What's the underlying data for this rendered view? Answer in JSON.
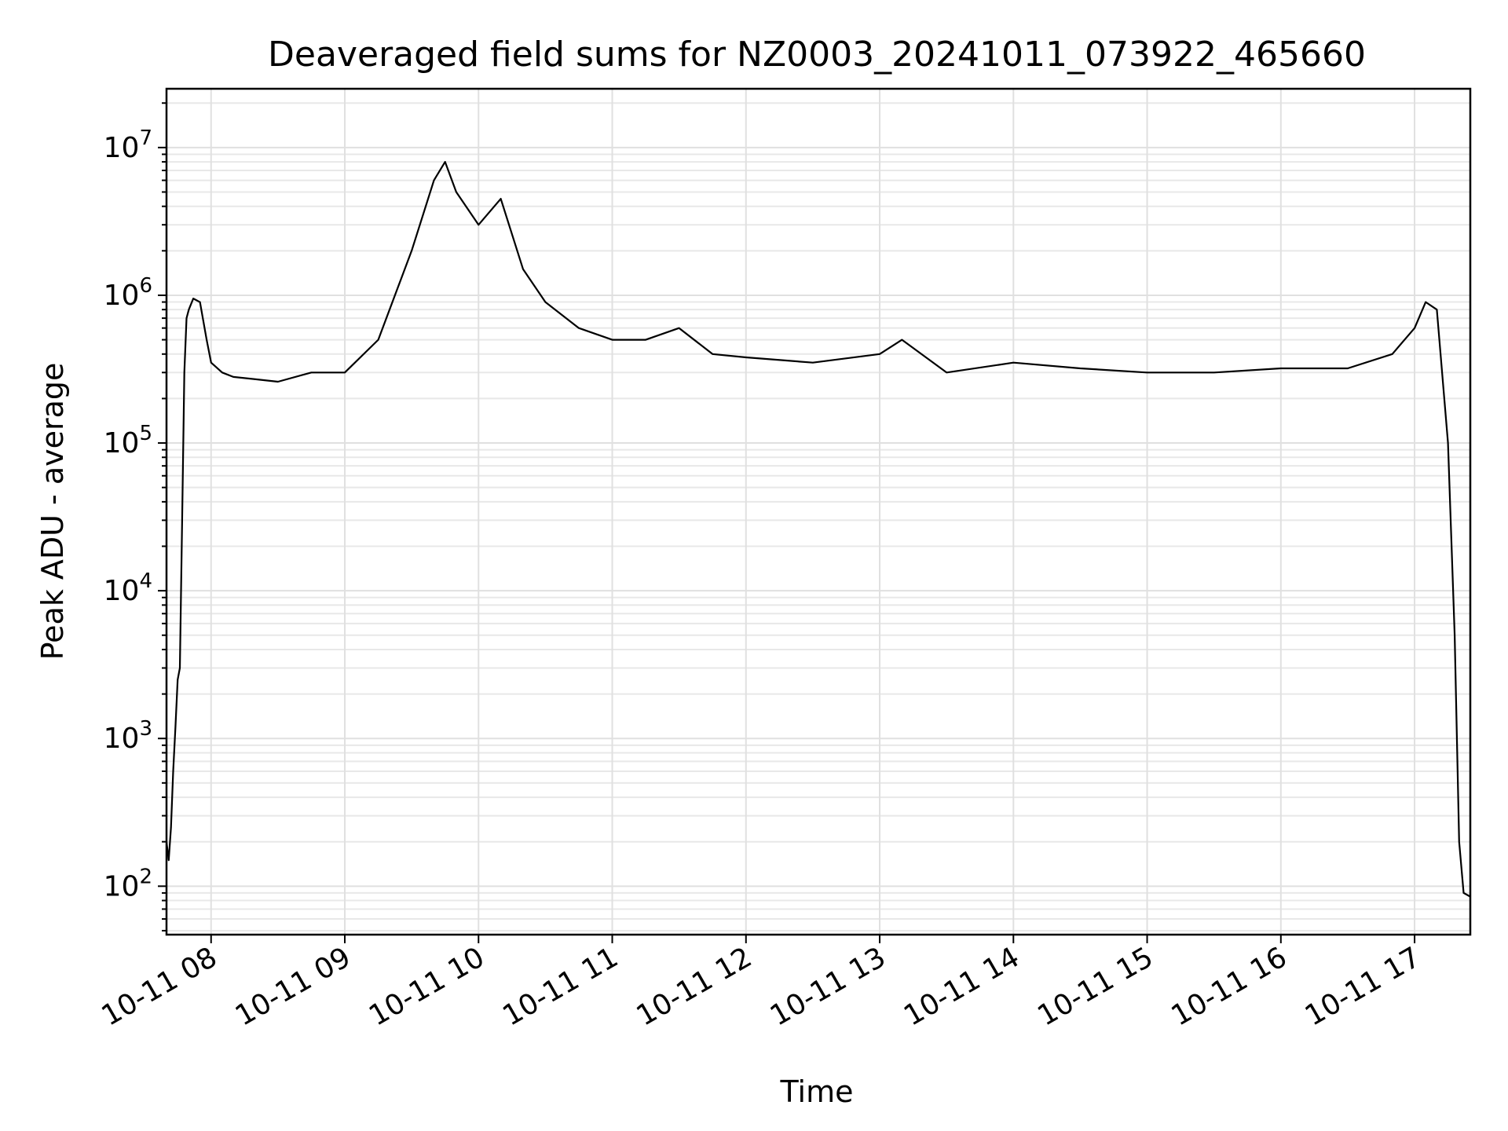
{
  "chart_data": {
    "type": "line",
    "title": "Deaveraged field sums for NZ0003_20241011_073922_465660",
    "xlabel": "Time",
    "ylabel": "Peak ADU - average",
    "yscale": "log",
    "ylim": [
      47,
      25000000
    ],
    "xlim": [
      "2024-10-11 07:40",
      "2024-10-11 17:25"
    ],
    "grid": "on (major and minor)",
    "line_color": "#000000",
    "x_tick_labels": [
      "10-11 08",
      "10-11 09",
      "10-11 10",
      "10-11 11",
      "10-11 12",
      "10-11 13",
      "10-11 14",
      "10-11 15",
      "10-11 16",
      "10-11 17"
    ],
    "y_tick_labels": [
      {
        "base": "10",
        "exp": "2",
        "value": 100
      },
      {
        "base": "10",
        "exp": "3",
        "value": 1000
      },
      {
        "base": "10",
        "exp": "4",
        "value": 10000
      },
      {
        "base": "10",
        "exp": "5",
        "value": 100000
      },
      {
        "base": "10",
        "exp": "6",
        "value": 1000000
      },
      {
        "base": "10",
        "exp": "7",
        "value": 10000000
      }
    ],
    "series": [
      {
        "x": [
          "2024-10-11 07:40",
          "2024-10-11 07:41",
          "2024-10-11 07:42",
          "2024-10-11 07:43",
          "2024-10-11 07:44",
          "2024-10-11 07:45",
          "2024-10-11 07:46",
          "2024-10-11 07:47",
          "2024-10-11 07:48",
          "2024-10-11 07:49",
          "2024-10-11 07:50",
          "2024-10-11 07:52",
          "2024-10-11 07:55",
          "2024-10-11 07:58",
          "2024-10-11 08:00",
          "2024-10-11 08:05",
          "2024-10-11 08:10",
          "2024-10-11 08:20",
          "2024-10-11 08:30",
          "2024-10-11 08:45",
          "2024-10-11 09:00",
          "2024-10-11 09:15",
          "2024-10-11 09:30",
          "2024-10-11 09:40",
          "2024-10-11 09:45",
          "2024-10-11 09:50",
          "2024-10-11 10:00",
          "2024-10-11 10:10",
          "2024-10-11 10:20",
          "2024-10-11 10:30",
          "2024-10-11 10:45",
          "2024-10-11 11:00",
          "2024-10-11 11:15",
          "2024-10-11 11:30",
          "2024-10-11 11:45",
          "2024-10-11 12:00",
          "2024-10-11 12:30",
          "2024-10-11 13:00",
          "2024-10-11 13:10",
          "2024-10-11 13:30",
          "2024-10-11 14:00",
          "2024-10-11 14:30",
          "2024-10-11 15:00",
          "2024-10-11 15:30",
          "2024-10-11 16:00",
          "2024-10-11 16:30",
          "2024-10-11 16:50",
          "2024-10-11 17:00",
          "2024-10-11 17:05",
          "2024-10-11 17:10",
          "2024-10-11 17:15",
          "2024-10-11 17:18",
          "2024-10-11 17:20",
          "2024-10-11 17:22",
          "2024-10-11 17:25"
        ],
        "y": [
          200,
          150,
          250,
          600,
          1200,
          2500,
          3000,
          30000,
          300000,
          700000,
          800000,
          950000,
          900000,
          500000,
          350000,
          300000,
          280000,
          270000,
          260000,
          300000,
          300000,
          500000,
          2000000,
          6000000,
          8000000,
          5000000,
          3000000,
          4500000,
          1500000,
          900000,
          600000,
          500000,
          500000,
          600000,
          400000,
          380000,
          350000,
          400000,
          500000,
          300000,
          350000,
          320000,
          300000,
          300000,
          320000,
          320000,
          400000,
          600000,
          900000,
          800000,
          100000,
          5000,
          200,
          90,
          85
        ]
      }
    ]
  }
}
